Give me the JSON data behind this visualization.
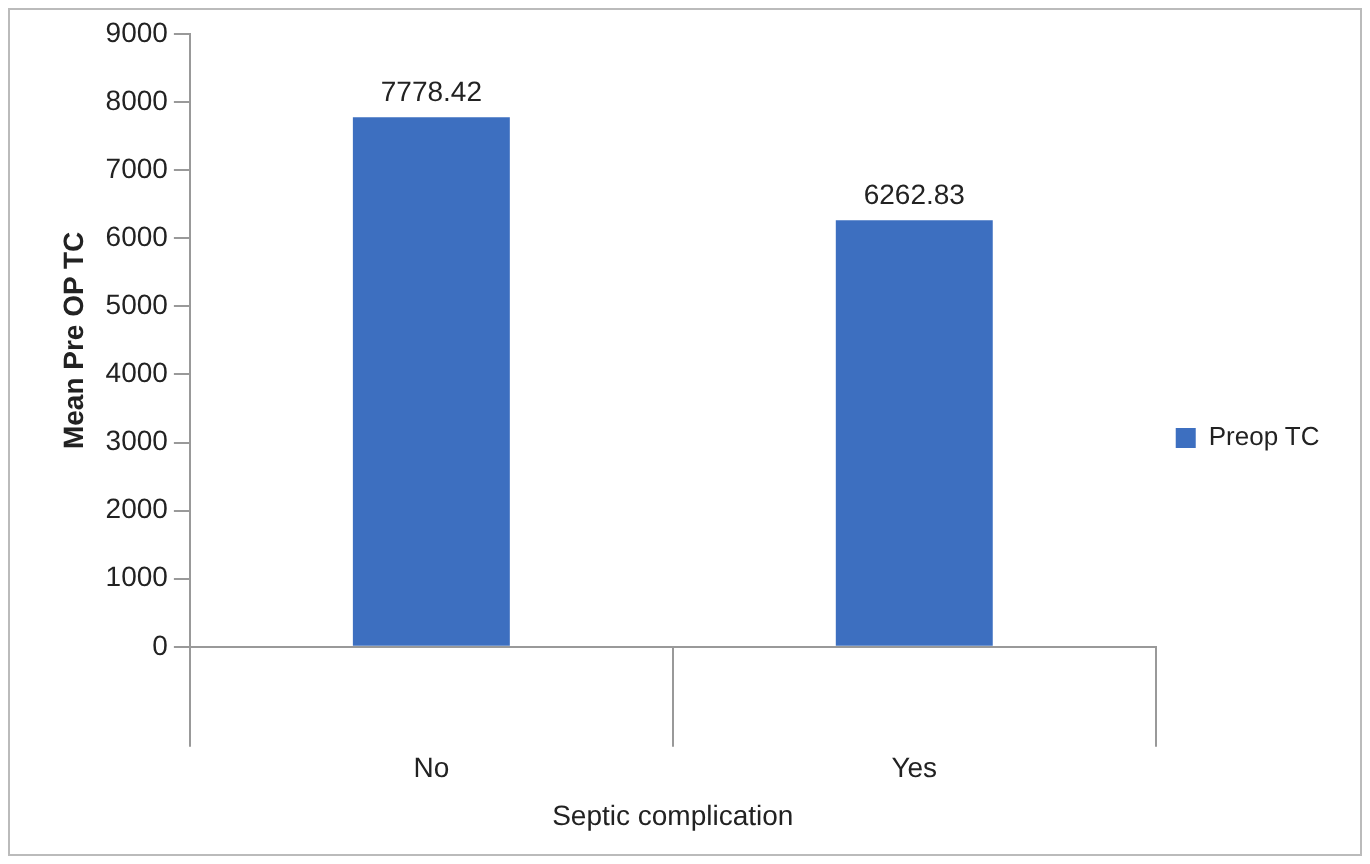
{
  "chart_data": {
    "type": "bar",
    "xlabel": "Septic complication",
    "ylabel": "Mean Pre OP TC",
    "categories": [
      "No",
      "Yes"
    ],
    "series": [
      {
        "name": "Preop TC",
        "color": "#3d6fc0",
        "values": [
          7778.42,
          6262.83
        ]
      }
    ],
    "ylim": [
      0,
      9000
    ],
    "yticks": [
      0,
      1000,
      2000,
      3000,
      4000,
      5000,
      6000,
      7000,
      8000,
      9000
    ],
    "data_labels": true,
    "legend": "right",
    "grid": false
  }
}
